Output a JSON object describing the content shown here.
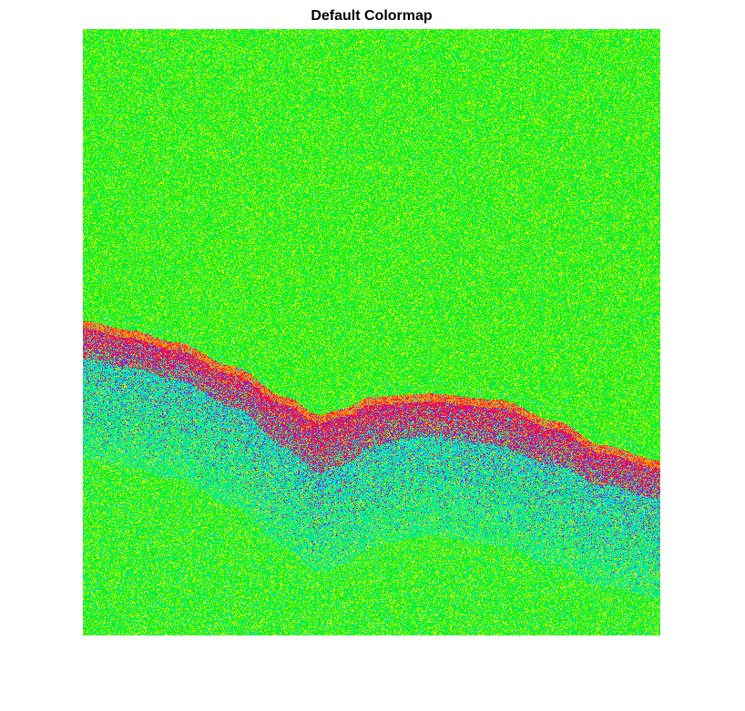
{
  "chart_data": {
    "type": "heatmap",
    "title": "Default Colormap",
    "xlabel": "",
    "ylabel": "",
    "axes_visible": false,
    "colormap": "hsv",
    "colors": {
      "background": "#1ae61a",
      "speckle_high": "#c8f000",
      "speckle_low": "#00e6a0",
      "band_core": "#ff1040",
      "band_highlight": "#ff9a00",
      "band_shadow": "#8c14d8",
      "band_fringe": "#00d8ff"
    },
    "layer_profile": {
      "x": [
        0,
        0.08,
        0.16,
        0.26,
        0.35,
        0.41,
        0.45,
        0.5,
        0.6,
        0.72,
        0.82,
        0.9,
        1.0
      ],
      "y": [
        0.485,
        0.5,
        0.52,
        0.56,
        0.61,
        0.64,
        0.63,
        0.61,
        0.605,
        0.615,
        0.65,
        0.69,
        0.715
      ]
    }
  }
}
